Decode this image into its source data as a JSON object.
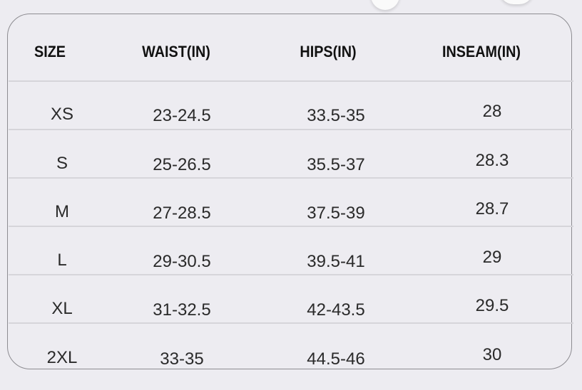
{
  "headers": [
    "SIZE",
    "WAIST(IN)",
    "HIPS(IN)",
    "INSEAM(IN)"
  ],
  "rows": [
    [
      "XS",
      "23-24.5",
      "33.5-35",
      "28"
    ],
    [
      "S",
      "25-26.5",
      "35.5-37",
      "28.3"
    ],
    [
      "M",
      "27-28.5",
      "37.5-39",
      "28.7"
    ],
    [
      "L",
      "29-30.5",
      "39.5-41",
      "29"
    ],
    [
      "XL",
      "31-32.5",
      "42-43.5",
      "29.5"
    ],
    [
      "2XL",
      "33-35",
      "44.5-46",
      "30"
    ]
  ]
}
